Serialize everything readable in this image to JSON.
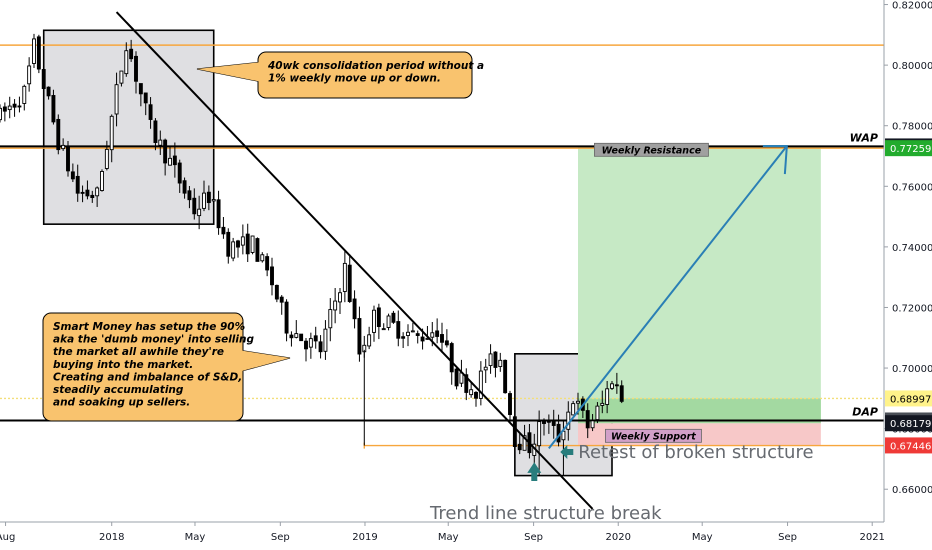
{
  "chart_data": {
    "type": "candlestick",
    "title": "",
    "xlabel": "",
    "ylabel": "",
    "y_axis": {
      "position": "right",
      "ylim": [
        0.6505,
        0.8215
      ],
      "ticks": [
        "0.66000",
        "0.68000",
        "0.70000",
        "0.72000",
        "0.74000",
        "0.76000",
        "0.78000",
        "0.80000",
        "0.82000"
      ]
    },
    "x_axis": {
      "start": "2017-07-24",
      "end": "2021-01-18",
      "ticks": [
        {
          "label": "Aug",
          "date": "2017-08-01"
        },
        {
          "label": "2018",
          "date": "2018-01-01"
        },
        {
          "label": "May",
          "date": "2018-05-01"
        },
        {
          "label": "Sep",
          "date": "2018-09-01"
        },
        {
          "label": "2019",
          "date": "2019-01-01"
        },
        {
          "label": "May",
          "date": "2019-05-01"
        },
        {
          "label": "Sep",
          "date": "2019-09-01"
        },
        {
          "label": "2020",
          "date": "2020-01-01"
        },
        {
          "label": "May",
          "date": "2020-05-01"
        },
        {
          "label": "Sep",
          "date": "2020-09-01"
        },
        {
          "label": "2021",
          "date": "2021-01-01"
        }
      ]
    },
    "grid": false,
    "candle_colors": {
      "up": "#ffffff",
      "down": "#000000",
      "outline": "#000000"
    },
    "price_path": [
      {
        "date": "2017-07-24",
        "value": 0.783
      },
      {
        "date": "2017-08-28",
        "value": 0.791
      },
      {
        "date": "2017-09-11",
        "value": 0.806
      },
      {
        "date": "2017-10-16",
        "value": 0.775
      },
      {
        "date": "2017-11-13",
        "value": 0.758
      },
      {
        "date": "2017-12-11",
        "value": 0.757
      },
      {
        "date": "2018-01-22",
        "value": 0.808
      },
      {
        "date": "2018-02-26",
        "value": 0.779
      },
      {
        "date": "2018-03-26",
        "value": 0.768
      },
      {
        "date": "2018-04-30",
        "value": 0.752
      },
      {
        "date": "2018-05-21",
        "value": 0.757
      },
      {
        "date": "2018-06-18",
        "value": 0.74
      },
      {
        "date": "2018-07-23",
        "value": 0.741
      },
      {
        "date": "2018-08-20",
        "value": 0.728
      },
      {
        "date": "2018-09-10",
        "value": 0.714
      },
      {
        "date": "2018-10-08",
        "value": 0.709
      },
      {
        "date": "2018-10-29",
        "value": 0.706
      },
      {
        "date": "2018-12-03",
        "value": 0.733
      },
      {
        "date": "2018-12-24",
        "value": 0.705
      },
      {
        "date": "2019-01-14",
        "value": 0.717
      },
      {
        "date": "2019-02-18",
        "value": 0.713
      },
      {
        "date": "2019-03-18",
        "value": 0.71
      },
      {
        "date": "2019-04-15",
        "value": 0.713
      },
      {
        "date": "2019-05-13",
        "value": 0.697
      },
      {
        "date": "2019-06-10",
        "value": 0.693
      },
      {
        "date": "2019-06-24",
        "value": 0.701
      },
      {
        "date": "2019-07-15",
        "value": 0.703
      },
      {
        "date": "2019-08-05",
        "value": 0.677
      },
      {
        "date": "2019-08-26",
        "value": 0.674
      },
      {
        "date": "2019-09-16",
        "value": 0.683
      },
      {
        "date": "2019-10-07",
        "value": 0.677
      },
      {
        "date": "2019-10-28",
        "value": 0.69
      },
      {
        "date": "2019-11-18",
        "value": 0.681
      },
      {
        "date": "2019-12-09",
        "value": 0.688
      },
      {
        "date": "2019-12-23",
        "value": 0.697
      },
      {
        "date": "2020-01-06",
        "value": 0.69
      }
    ],
    "horizontal_levels": [
      {
        "name": "top_resistance",
        "value": 0.8066,
        "color": "#f7a63d"
      },
      {
        "name": "WAP",
        "label": "WAP",
        "value": 0.77316,
        "color": "#000000",
        "badge": "0.77316",
        "badge_bg": "#131722",
        "badge_fg": "#ffffff"
      },
      {
        "name": "weekly_resistance_line",
        "value": 0.77259,
        "color": "#f7a63d",
        "badge": "0.77259",
        "badge_bg": "#22ab2d",
        "badge_fg": "#ffffff"
      },
      {
        "name": "DAP",
        "label": "DAP",
        "value": 0.68269,
        "color": "#000000",
        "badge": "0.68269",
        "badge_bg": "#4a4f57",
        "badge_fg": "#ffffff"
      },
      {
        "name": "weekly_support_line",
        "value": 0.6744,
        "color": "#f7a63d",
        "from_date": "2018-12-31"
      },
      {
        "name": "last_price",
        "value": 0.68997,
        "color": "#f3df7a",
        "dashed": true,
        "badge": "0.68997",
        "badge_bg": "#fff38a",
        "badge_fg": "#000000"
      }
    ],
    "extra_badges": [
      {
        "value": 0.68179,
        "text": "0.68179",
        "bg": "#131722",
        "fg": "#ffffff"
      },
      {
        "value": 0.67446,
        "text": "0.67446",
        "bg": "#ef3a37",
        "fg": "#ffffff"
      }
    ],
    "position": {
      "entry": 0.68179,
      "stop": 0.67446,
      "target": 0.77316,
      "start_date": "2019-11-04",
      "end_date": "2020-10-19",
      "profit_color": "#c6e9c5",
      "loss_color": "#f7c8c8"
    },
    "zones": [
      {
        "name": "consolidation_box",
        "from": "2017-09-25",
        "to": "2018-05-28",
        "top": 0.8115,
        "bottom": 0.7475,
        "fill": "#d9d9dd"
      },
      {
        "name": "accumulation_box",
        "from": "2019-08-05",
        "to": "2019-12-23",
        "top": 0.7047,
        "bottom": 0.6645,
        "fill": "#d9d9dd"
      }
    ],
    "trendline": [
      {
        "date": "2018-01-08",
        "value": 0.8175
      },
      {
        "date": "2019-11-25",
        "value": 0.6535
      }
    ],
    "projection": {
      "color": "#2a7fb5",
      "points": [
        {
          "date": "2019-09-23",
          "value": 0.6735
        },
        {
          "date": "2020-08-31",
          "value": 0.7733
        }
      ]
    },
    "annotations": [
      {
        "name": "consolidation_note",
        "lines": [
          "40wk consolidation period without a",
          "1% weekly move up or down."
        ]
      },
      {
        "name": "smart_money_note",
        "lines": [
          "Smart Money has setup the 90%",
          "aka the 'dumb money' into selling",
          "the market all awhile they're",
          "buying into the market.",
          "Creating and imbalance of S&D,",
          "steadily accumulating",
          "and soaking up sellers."
        ]
      },
      {
        "name": "weekly_resistance",
        "text": "Weekly Resistance"
      },
      {
        "name": "weekly_support",
        "text": "Weekly Support"
      },
      {
        "name": "retest",
        "text": "Retest of broken structure"
      },
      {
        "name": "trend_break",
        "text": "Trend line structure break"
      }
    ]
  }
}
